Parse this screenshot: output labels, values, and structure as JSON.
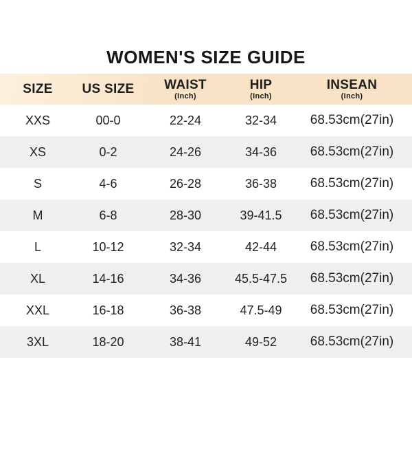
{
  "title": "WOMEN'S SIZE GUIDE",
  "colors": {
    "header_bg": "#f8e2c5",
    "header_bg_light": "#fdf1dd",
    "alt_row_bg": "#efeff1",
    "text": "#232323",
    "title_text": "#161616"
  },
  "chart_data": {
    "type": "table",
    "title": "WOMEN'S SIZE GUIDE",
    "columns": [
      {
        "label": "SIZE",
        "unit": ""
      },
      {
        "label": "US SIZE",
        "unit": ""
      },
      {
        "label": "WAIST",
        "unit": "(Inch)"
      },
      {
        "label": "HIP",
        "unit": "(Inch)"
      },
      {
        "label": "INSEAN",
        "unit": "(Inch)"
      }
    ],
    "rows": [
      [
        "XXS",
        "00-0",
        "22-24",
        "32-34",
        "68.53cm(27in)"
      ],
      [
        "XS",
        "0-2",
        "24-26",
        "34-36",
        "68.53cm(27in)"
      ],
      [
        "S",
        "4-6",
        "26-28",
        "36-38",
        "68.53cm(27in)"
      ],
      [
        "M",
        "6-8",
        "28-30",
        "39-41.5",
        "68.53cm(27in)"
      ],
      [
        "L",
        "10-12",
        "32-34",
        "42-44",
        "68.53cm(27in)"
      ],
      [
        "XL",
        "14-16",
        "34-36",
        "45.5-47.5",
        "68.53cm(27in)"
      ],
      [
        "XXL",
        "16-18",
        "36-38",
        "47.5-49",
        "68.53cm(27in)"
      ],
      [
        "3XL",
        "18-20",
        "38-41",
        "49-52",
        "68.53cm(27in)"
      ]
    ]
  }
}
